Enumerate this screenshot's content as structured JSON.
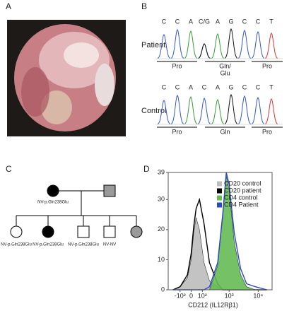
{
  "panels": {
    "a": {
      "label": "A"
    },
    "b": {
      "label": "B",
      "patient": {
        "label": "Patient",
        "bases": [
          "C",
          "C",
          "A",
          "C/G",
          "A",
          "G",
          "C",
          "C",
          "T"
        ],
        "codons": [
          [
            "Pro"
          ],
          [
            "Gln/",
            "Glu"
          ],
          [
            "Pro"
          ]
        ]
      },
      "control": {
        "label": "Control",
        "bases": [
          "C",
          "C",
          "A",
          "C",
          "A",
          "G",
          "C",
          "C",
          "T"
        ],
        "codons": [
          [
            "Pro"
          ],
          [
            "Gln"
          ],
          [
            "Pro"
          ]
        ]
      }
    },
    "c": {
      "label": "C",
      "mother_genotype": "NV-p.Gln238Glu",
      "children_genotypes": [
        "NV-p.Gln238Glu",
        "NV-p.Gln238Glu",
        "NV-p.Gln238Glu",
        "NV-NV"
      ]
    },
    "d": {
      "label": "D"
    }
  },
  "chart_data": {
    "type": "line",
    "x_label": "CD212 (IL12Rβ1)",
    "x": [
      -200,
      -100,
      -30,
      0,
      20,
      40,
      70,
      120,
      200,
      400,
      600,
      800,
      1000,
      1500,
      2500,
      4000,
      8000,
      20000
    ],
    "series": [
      {
        "name": "CD20 control",
        "color": "#bdbdbd",
        "filled": true,
        "values": [
          0,
          1,
          4,
          10,
          19,
          24,
          20,
          9,
          3,
          1,
          0,
          0,
          0,
          0,
          0,
          0,
          0,
          0
        ]
      },
      {
        "name": "CD20 patient",
        "color": "#000000",
        "filled": false,
        "values": [
          0,
          1,
          5,
          12,
          21,
          27,
          30,
          22,
          9,
          2,
          0,
          0,
          0,
          0,
          0,
          0,
          0,
          0
        ]
      },
      {
        "name": "CD4 control",
        "color": "#66bb55",
        "filled": true,
        "values": [
          0,
          0,
          0,
          0,
          0,
          0,
          0,
          0,
          0,
          8,
          24,
          38,
          33,
          16,
          5,
          1,
          0,
          0
        ]
      },
      {
        "name": "CD4 Patient",
        "color": "#2a4bbf",
        "filled": false,
        "values": [
          0,
          0,
          0,
          0,
          0,
          0,
          0,
          0,
          1,
          9,
          25,
          39,
          35,
          19,
          7,
          2,
          1,
          0
        ]
      }
    ],
    "xscale": "biexponential",
    "xlim": [
      -300,
      30000
    ],
    "xticks": [
      {
        "value": -100,
        "label": "-10²"
      },
      0,
      {
        "value": 100,
        "label": "10²"
      },
      {
        "value": 1000,
        "label": "10³"
      },
      {
        "value": 10000,
        "label": "10⁴"
      }
    ],
    "ylim": [
      0,
      39
    ],
    "yticks": [
      0,
      10,
      20,
      30,
      39
    ],
    "legend": "top-right"
  }
}
